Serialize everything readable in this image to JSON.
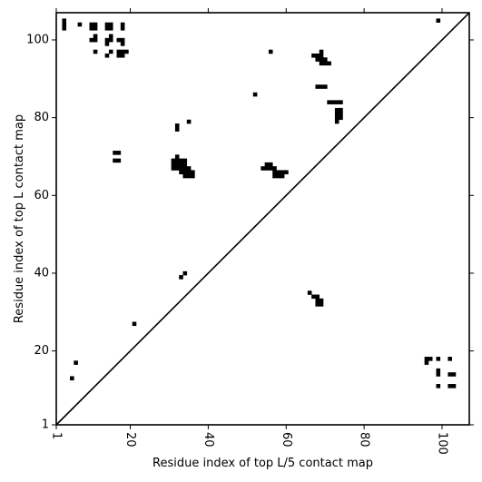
{
  "chart_data": {
    "type": "heatmap",
    "title": "",
    "xlabel": "Residue index of top L/5 contact map",
    "ylabel": "Residue index of top L contact map",
    "xlim": [
      1,
      107
    ],
    "ylim": [
      1,
      107
    ],
    "xticks": [
      1,
      20,
      40,
      60,
      80,
      100
    ],
    "yticks": [
      1,
      20,
      40,
      60,
      80,
      100
    ],
    "x_tick_rotation": "-90",
    "grid": false,
    "diagonal_line": true,
    "cell_color": "#000000",
    "background_color": "#ffffff",
    "lower_triangle_contacts": [
      [
        66,
        35
      ],
      [
        67,
        34
      ],
      [
        68,
        34
      ],
      [
        69,
        33
      ],
      [
        69,
        32
      ],
      [
        68,
        33
      ],
      [
        68,
        32
      ],
      [
        33,
        39
      ],
      [
        34,
        40
      ],
      [
        21,
        27
      ],
      [
        6,
        17
      ],
      [
        5,
        13
      ],
      [
        96,
        18
      ],
      [
        97,
        18
      ],
      [
        99,
        18
      ],
      [
        102,
        18
      ],
      [
        96,
        17
      ],
      [
        99,
        15
      ],
      [
        99,
        14
      ],
      [
        102,
        14
      ],
      [
        103,
        14
      ],
      [
        99,
        11
      ],
      [
        102,
        11
      ],
      [
        103,
        11
      ]
    ],
    "upper_triangle_contacts": [
      [
        3,
        105
      ],
      [
        3,
        104
      ],
      [
        3,
        103
      ],
      [
        7,
        104
      ],
      [
        10,
        104
      ],
      [
        11,
        104
      ],
      [
        10,
        103
      ],
      [
        11,
        103
      ],
      [
        14,
        104
      ],
      [
        15,
        104
      ],
      [
        14,
        103
      ],
      [
        15,
        103
      ],
      [
        18,
        104
      ],
      [
        18,
        103
      ],
      [
        11,
        101
      ],
      [
        15,
        101
      ],
      [
        10,
        100
      ],
      [
        11,
        100
      ],
      [
        14,
        100
      ],
      [
        15,
        100
      ],
      [
        17,
        100
      ],
      [
        18,
        100
      ],
      [
        14,
        99
      ],
      [
        18,
        99
      ],
      [
        11,
        97
      ],
      [
        15,
        97
      ],
      [
        17,
        97
      ],
      [
        18,
        97
      ],
      [
        19,
        97
      ],
      [
        14,
        96
      ],
      [
        17,
        96
      ],
      [
        18,
        96
      ],
      [
        99,
        105
      ],
      [
        56,
        97
      ],
      [
        67,
        96
      ],
      [
        68,
        96
      ],
      [
        69,
        97
      ],
      [
        69,
        96
      ],
      [
        69,
        95
      ],
      [
        70,
        95
      ],
      [
        68,
        95
      ],
      [
        69,
        94
      ],
      [
        70,
        94
      ],
      [
        71,
        94
      ],
      [
        68,
        88
      ],
      [
        69,
        88
      ],
      [
        70,
        88
      ],
      [
        52,
        86
      ],
      [
        71,
        84
      ],
      [
        72,
        84
      ],
      [
        73,
        84
      ],
      [
        74,
        84
      ],
      [
        73,
        82
      ],
      [
        74,
        82
      ],
      [
        73,
        81
      ],
      [
        74,
        81
      ],
      [
        73,
        80
      ],
      [
        74,
        80
      ],
      [
        73,
        79
      ],
      [
        35,
        79
      ],
      [
        32,
        78
      ],
      [
        32,
        77
      ],
      [
        16,
        71
      ],
      [
        17,
        71
      ],
      [
        16,
        69
      ],
      [
        17,
        69
      ],
      [
        32,
        70
      ],
      [
        31,
        69
      ],
      [
        32,
        69
      ],
      [
        33,
        69
      ],
      [
        34,
        69
      ],
      [
        31,
        68
      ],
      [
        32,
        68
      ],
      [
        33,
        68
      ],
      [
        34,
        68
      ],
      [
        31,
        67
      ],
      [
        32,
        67
      ],
      [
        33,
        67
      ],
      [
        34,
        67
      ],
      [
        35,
        67
      ],
      [
        33,
        66
      ],
      [
        34,
        66
      ],
      [
        35,
        66
      ],
      [
        36,
        66
      ],
      [
        34,
        65
      ],
      [
        35,
        65
      ],
      [
        36,
        65
      ],
      [
        55,
        68
      ],
      [
        56,
        68
      ],
      [
        54,
        67
      ],
      [
        55,
        67
      ],
      [
        56,
        67
      ],
      [
        57,
        67
      ],
      [
        57,
        66
      ],
      [
        58,
        66
      ],
      [
        59,
        66
      ],
      [
        60,
        66
      ],
      [
        57,
        65
      ],
      [
        58,
        65
      ],
      [
        59,
        65
      ]
    ]
  }
}
